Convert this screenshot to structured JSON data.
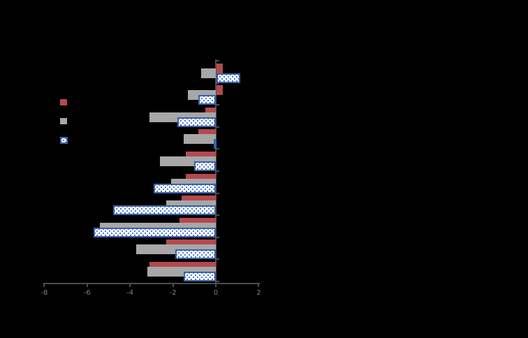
{
  "figure": {
    "background": "#000000",
    "note": "bar chart; title, category labels and legend text are not visible (rendered black on black)"
  },
  "chart_data": {
    "type": "bar",
    "orientation": "horizontal",
    "n_groups": 10,
    "categories": [
      "",
      "",
      "",
      "",
      "",
      "",
      "",
      "",
      "",
      ""
    ],
    "category_labels_visible": false,
    "series": [
      {
        "name": "red",
        "color": "#b4494d",
        "values": [
          0.3,
          0.3,
          -0.5,
          -0.8,
          -1.4,
          -1.4,
          -1.6,
          -1.7,
          -2.3,
          -3.1
        ]
      },
      {
        "name": "gray",
        "color": "#a7a7a7",
        "values": [
          -0.7,
          -1.3,
          -3.1,
          -1.5,
          -2.6,
          -2.1,
          -2.3,
          -5.4,
          -3.7,
          -3.2
        ]
      },
      {
        "name": "blue-dotted",
        "color": "#3a62b0",
        "fill": "#ffffff",
        "pattern": "dots",
        "values": [
          1.1,
          -0.8,
          -1.8,
          -0.1,
          -1.0,
          -2.9,
          -4.8,
          -5.7,
          -1.9,
          -1.5
        ]
      }
    ],
    "xlim": [
      -8,
      2
    ],
    "x_ticks": [
      -8,
      -6,
      -4,
      -2,
      0,
      2
    ],
    "x_tick_labels": [
      "-8",
      "-6",
      "-4",
      "-2",
      "0",
      "2"
    ],
    "title": "",
    "xlabel": "",
    "ylabel": "",
    "legend_position": "left",
    "legend_labels_visible": false,
    "grid": false
  },
  "colors": {
    "axis": "#4d4d4d",
    "tick_label": "#7f7f7f",
    "red_series": "#b4494d",
    "gray_series": "#a7a7a7",
    "blue_border": "#3a62b0",
    "blue_dot": "#4472c4",
    "blue_fill": "#ffffff"
  }
}
